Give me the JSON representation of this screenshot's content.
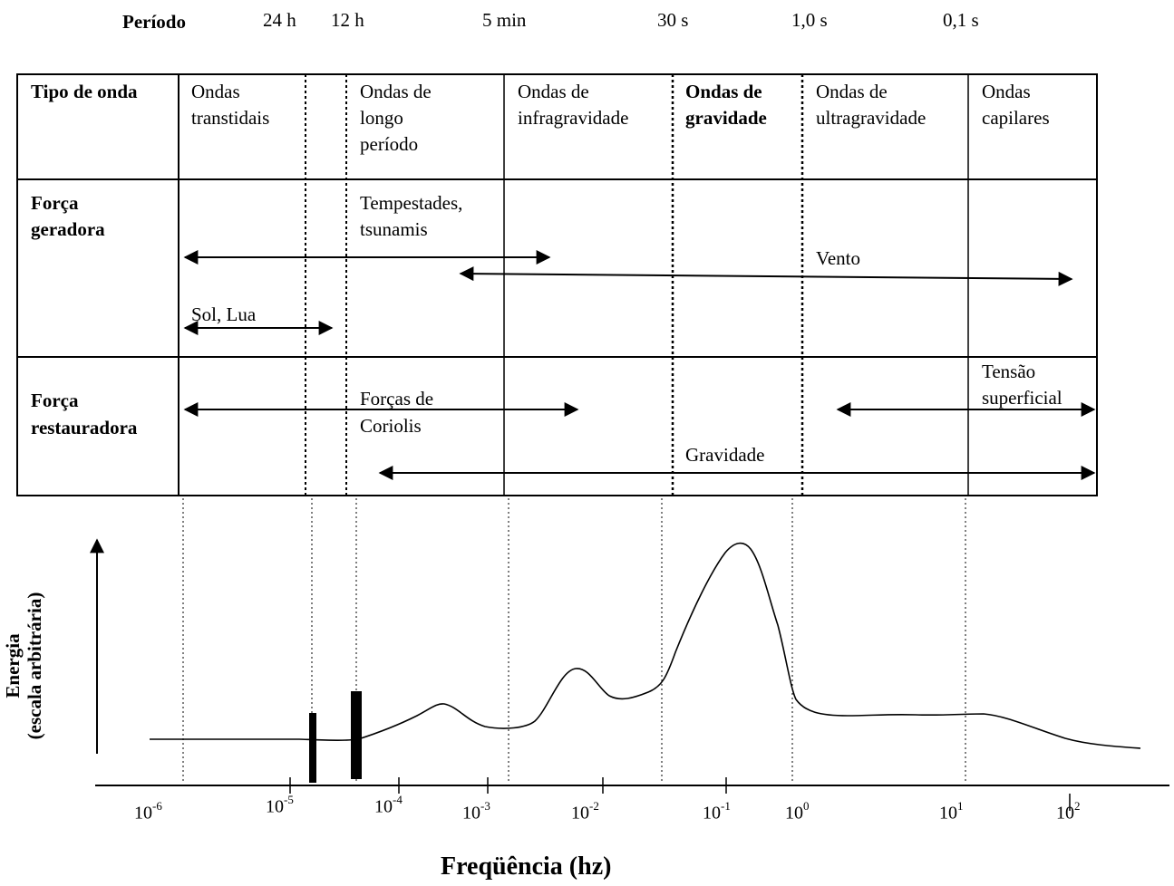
{
  "period_row": {
    "label": "Período",
    "values": [
      "24 h",
      "12 h",
      "5 min",
      "30 s",
      "1,0 s",
      "0,1 s"
    ]
  },
  "table": {
    "row_headers": {
      "wave_type": "Tipo de onda",
      "generating_force_line1": "Força",
      "generating_force_line2": "geradora",
      "restoring_force_line1": "Força",
      "restoring_force_line2": "restauradora"
    },
    "wave_types": [
      {
        "lines": [
          "Ondas",
          "transtidais"
        ],
        "bold": false
      },
      {
        "lines": [
          "Ondas de",
          "longo",
          "período"
        ],
        "bold": false
      },
      {
        "lines": [
          "Ondas de",
          "infragravidade"
        ],
        "bold": false
      },
      {
        "lines": [
          "Ondas de",
          "gravidade"
        ],
        "bold": true
      },
      {
        "lines": [
          "Ondas de",
          "ultragravidade"
        ],
        "bold": false
      },
      {
        "lines": [
          "Ondas",
          "capilares"
        ],
        "bold": false
      }
    ],
    "generating_forces": {
      "storms": [
        "Tempestades,",
        "tsunamis"
      ],
      "wind": "Vento",
      "sun_moon": "Sol, Lua"
    },
    "restoring_forces": {
      "coriolis": [
        "Forças de",
        "Coriolis"
      ],
      "surface_tension": [
        "Tensão",
        "superficial"
      ],
      "gravity": "Gravidade"
    }
  },
  "chart_data": {
    "type": "line",
    "xlabel": "Freqüência (hz)",
    "ylabel": [
      "Energia",
      "(escala arbitrária)"
    ],
    "x_scale": "log",
    "x_ticks": [
      {
        "base": "10",
        "exp": "-6"
      },
      {
        "base": "10",
        "exp": "-5"
      },
      {
        "base": "10",
        "exp": "-4"
      },
      {
        "base": "10",
        "exp": "-3"
      },
      {
        "base": "10",
        "exp": "-2"
      },
      {
        "base": "10",
        "exp": "-1"
      },
      {
        "base": "10",
        "exp": "0"
      },
      {
        "base": "10",
        "exp": "1"
      },
      {
        "base": "10",
        "exp": "2"
      }
    ],
    "y_units": "arbitrary",
    "spectral_peaks_shown": [
      "tidal bars",
      "infragravity",
      "gravity",
      "capillary"
    ]
  }
}
